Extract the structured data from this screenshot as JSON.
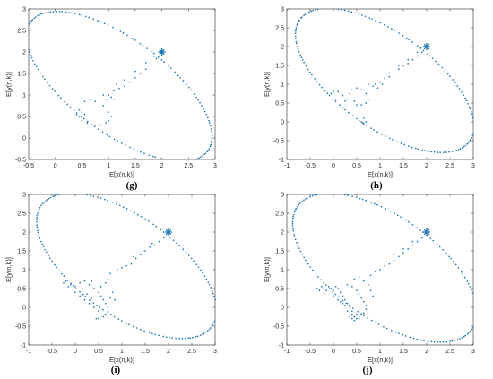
{
  "figure": {
    "background": "#ffffff",
    "marker_color": "#1f77b4"
  },
  "chart_data": [
    {
      "id": "g",
      "type": "scatter",
      "panel_label": "(g)",
      "title": "",
      "xlabel": "E[x(n,k)]",
      "ylabel": "E[y(n,k)]",
      "xlim": [
        -0.5,
        3.0
      ],
      "ylim": [
        -0.5,
        3.0
      ],
      "xticks": [
        -0.5,
        0,
        0.5,
        1,
        1.5,
        2,
        2.5,
        3
      ],
      "xtick_labels": [
        "-0.5",
        "0",
        "0.5",
        "1",
        "1.5",
        "2",
        "2.5",
        "3"
      ],
      "yticks": [
        -0.5,
        0,
        0.5,
        1,
        1.5,
        2,
        2.5,
        3
      ],
      "ytick_labels": [
        "-0.5",
        "0",
        "0.5",
        "1",
        "1.5",
        "2",
        "2.5",
        "3"
      ],
      "grid": false,
      "fixed_point": [
        2,
        2
      ],
      "orbit": {
        "center": [
          1.2,
          1.2
        ],
        "a": 2.25,
        "b": 1.0,
        "angle_deg": -45
      },
      "series": [
        {
          "values": [
            [
              0.45,
              0.65
            ],
            [
              0.4,
              0.55
            ],
            [
              0.55,
              0.85
            ],
            [
              0.65,
              0.9
            ],
            [
              0.75,
              0.85
            ],
            [
              0.9,
              0.75
            ],
            [
              1.0,
              0.6
            ],
            [
              1.05,
              0.5
            ],
            [
              1.0,
              0.4
            ],
            [
              0.95,
              0.35
            ],
            [
              0.85,
              0.3
            ],
            [
              0.75,
              0.3
            ],
            [
              0.6,
              0.35
            ],
            [
              0.5,
              0.4
            ],
            [
              0.45,
              0.5
            ],
            [
              0.95,
              0.9
            ],
            [
              0.9,
              1.0
            ],
            [
              1.0,
              1.0
            ],
            [
              1.1,
              1.1
            ],
            [
              1.2,
              1.15
            ],
            [
              1.3,
              1.2
            ],
            [
              1.4,
              1.3
            ],
            [
              1.5,
              1.4
            ],
            [
              1.6,
              1.5
            ],
            [
              1.7,
              1.6
            ],
            [
              1.8,
              1.7
            ],
            [
              1.9,
              1.85
            ],
            [
              1.15,
              1.25
            ],
            [
              1.3,
              1.35
            ],
            [
              1.5,
              1.55
            ],
            [
              1.7,
              1.75
            ],
            [
              1.85,
              1.9
            ],
            [
              1.05,
              0.95
            ],
            [
              1.1,
              0.9
            ],
            [
              0.55,
              0.55
            ],
            [
              0.5,
              0.6
            ]
          ]
        }
      ]
    },
    {
      "id": "h",
      "type": "scatter",
      "panel_label": "(h)",
      "title": "",
      "xlabel": "E[x(n,k)]",
      "ylabel": "E[y(n,k)]",
      "xlim": [
        -1,
        3
      ],
      "ylim": [
        -1,
        3
      ],
      "xticks": [
        -1,
        -0.5,
        0,
        0.5,
        1,
        1.5,
        2,
        2.5,
        3
      ],
      "xtick_labels": [
        "-1",
        "-0.5",
        "0",
        "0.5",
        "1",
        "1.5",
        "2",
        "2.5",
        "3"
      ],
      "yticks": [
        -1,
        -0.5,
        0,
        0.5,
        1,
        1.5,
        2,
        2.5,
        3
      ],
      "ytick_labels": [
        "-1",
        "-0.5",
        "0",
        "0.5",
        "1",
        "1.5",
        "2",
        "2.5",
        "3"
      ],
      "grid": false,
      "fixed_point": [
        2,
        2
      ],
      "orbit": {
        "center": [
          1.1,
          1.1
        ],
        "a": 2.45,
        "b": 1.15,
        "angle_deg": -45
      },
      "series": [
        {
          "values": [
            [
              -0.05,
              0.75
            ],
            [
              0.0,
              0.8
            ],
            [
              0.1,
              0.8
            ],
            [
              0.2,
              0.7
            ],
            [
              0.3,
              0.6
            ],
            [
              0.25,
              0.55
            ],
            [
              0.05,
              0.6
            ],
            [
              0.35,
              0.75
            ],
            [
              0.4,
              0.85
            ],
            [
              0.5,
              0.9
            ],
            [
              0.6,
              0.85
            ],
            [
              0.7,
              0.75
            ],
            [
              0.75,
              0.6
            ],
            [
              0.7,
              0.5
            ],
            [
              0.6,
              0.45
            ],
            [
              0.5,
              0.45
            ],
            [
              0.45,
              0.55
            ],
            [
              0.65,
              0.1
            ],
            [
              0.7,
              0.0
            ],
            [
              0.65,
              -0.05
            ],
            [
              0.6,
              0.0
            ],
            [
              0.75,
              1.0
            ],
            [
              0.9,
              1.0
            ],
            [
              1.0,
              1.05
            ],
            [
              1.1,
              1.15
            ],
            [
              1.2,
              1.2
            ],
            [
              1.3,
              1.3
            ],
            [
              1.4,
              1.4
            ],
            [
              1.5,
              1.5
            ],
            [
              1.6,
              1.55
            ],
            [
              1.7,
              1.65
            ],
            [
              1.8,
              1.75
            ],
            [
              1.9,
              1.85
            ],
            [
              1.2,
              1.3
            ],
            [
              1.4,
              1.5
            ],
            [
              1.6,
              1.65
            ],
            [
              1.8,
              1.85
            ],
            [
              0.95,
              0.9
            ],
            [
              1.05,
              1.0
            ],
            [
              0.85,
              0.95
            ]
          ]
        }
      ]
    },
    {
      "id": "i",
      "type": "scatter",
      "panel_label": "(i)",
      "title": "",
      "xlabel": "E[x(n,k)]",
      "ylabel": "E[y(n,k)]",
      "xlim": [
        -1,
        3
      ],
      "ylim": [
        -1,
        3
      ],
      "xticks": [
        -1,
        -0.5,
        0,
        0.5,
        1,
        1.5,
        2,
        2.5,
        3
      ],
      "xtick_labels": [
        "-1",
        "-0.5",
        "0",
        "0.5",
        "1",
        "1.5",
        "2",
        "2.5",
        "3"
      ],
      "yticks": [
        -1,
        -0.5,
        0,
        0.5,
        1,
        1.5,
        2,
        2.5,
        3
      ],
      "ytick_labels": [
        "-1",
        "-0.5",
        "0",
        "0.5",
        "1",
        "1.5",
        "2",
        "2.5",
        "3"
      ],
      "grid": false,
      "fixed_point": [
        2,
        2
      ],
      "orbit": {
        "center": [
          1.1,
          1.1
        ],
        "a": 2.45,
        "b": 1.2,
        "angle_deg": -45
      },
      "series": [
        {
          "values": [
            [
              -0.25,
              0.65
            ],
            [
              -0.2,
              0.7
            ],
            [
              -0.1,
              0.6
            ],
            [
              0.0,
              0.55
            ],
            [
              0.1,
              0.65
            ],
            [
              0.2,
              0.7
            ],
            [
              0.3,
              0.6
            ],
            [
              0.4,
              0.5
            ],
            [
              0.5,
              0.4
            ],
            [
              0.55,
              0.3
            ],
            [
              0.6,
              0.2
            ],
            [
              0.65,
              0.1
            ],
            [
              0.7,
              0.0
            ],
            [
              0.7,
              -0.1
            ],
            [
              0.65,
              -0.2
            ],
            [
              0.6,
              -0.25
            ],
            [
              0.5,
              -0.3
            ],
            [
              0.45,
              -0.3
            ],
            [
              -0.15,
              0.55
            ],
            [
              0.0,
              0.4
            ],
            [
              0.1,
              0.3
            ],
            [
              0.2,
              0.2
            ],
            [
              0.3,
              0.1
            ],
            [
              0.4,
              0.0
            ],
            [
              0.5,
              -0.1
            ],
            [
              0.55,
              0.55
            ],
            [
              0.65,
              0.65
            ],
            [
              0.7,
              0.75
            ],
            [
              0.75,
              0.9
            ],
            [
              0.8,
              0.4
            ],
            [
              0.75,
              0.25
            ],
            [
              0.85,
              0.2
            ],
            [
              0.9,
              1.0
            ],
            [
              1.0,
              1.05
            ],
            [
              1.1,
              1.1
            ],
            [
              1.2,
              1.15
            ],
            [
              1.3,
              1.3
            ],
            [
              1.4,
              1.4
            ],
            [
              1.5,
              1.5
            ],
            [
              1.6,
              1.6
            ],
            [
              1.7,
              1.65
            ],
            [
              1.8,
              1.75
            ],
            [
              1.9,
              1.85
            ],
            [
              1.25,
              1.35
            ],
            [
              1.45,
              1.5
            ],
            [
              1.65,
              1.7
            ],
            [
              0.35,
              0.7
            ],
            [
              0.15,
              0.5
            ],
            [
              0.25,
              0.35
            ],
            [
              0.35,
              0.25
            ]
          ]
        }
      ]
    },
    {
      "id": "j",
      "type": "scatter",
      "panel_label": "(j)",
      "title": "",
      "xlabel": "E[x(n,k)]",
      "ylabel": "E[y(n,k)]",
      "xlim": [
        -1,
        3
      ],
      "ylim": [
        -1,
        3
      ],
      "xticks": [
        -1,
        -0.5,
        0,
        0.5,
        1,
        1.5,
        2,
        2.5,
        3
      ],
      "xtick_labels": [
        "-1",
        "-0.5",
        "0",
        "0.5",
        "1",
        "1.5",
        "2",
        "2.5",
        "3"
      ],
      "yticks": [
        -1,
        -0.5,
        0,
        0.5,
        1,
        1.5,
        2,
        2.5,
        3
      ],
      "ytick_labels": [
        "-1",
        "-0.5",
        "0",
        "0.5",
        "1",
        "1.5",
        "2",
        "2.5",
        "3"
      ],
      "grid": false,
      "fixed_point": [
        2,
        2
      ],
      "orbit": {
        "center": [
          1.1,
          1.05
        ],
        "a": 2.5,
        "b": 1.25,
        "angle_deg": -45
      },
      "series": [
        {
          "values": [
            [
              -0.35,
              0.5
            ],
            [
              -0.3,
              0.45
            ],
            [
              -0.25,
              0.55
            ],
            [
              -0.2,
              0.5
            ],
            [
              -0.15,
              0.45
            ],
            [
              -0.1,
              0.55
            ],
            [
              -0.05,
              0.5
            ],
            [
              0.0,
              0.45
            ],
            [
              0.05,
              0.55
            ],
            [
              0.1,
              0.5
            ],
            [
              0.15,
              0.4
            ],
            [
              0.2,
              0.3
            ],
            [
              0.25,
              0.2
            ],
            [
              0.3,
              0.1
            ],
            [
              0.35,
              0.0
            ],
            [
              0.4,
              -0.1
            ],
            [
              0.4,
              -0.2
            ],
            [
              0.45,
              -0.25
            ],
            [
              0.5,
              -0.3
            ],
            [
              0.45,
              -0.35
            ],
            [
              0.4,
              -0.3
            ],
            [
              0.35,
              -0.25
            ],
            [
              0.55,
              -0.25
            ],
            [
              0.6,
              -0.2
            ],
            [
              0.5,
              -0.2
            ],
            [
              0.55,
              -0.3
            ],
            [
              0.3,
              0.6
            ],
            [
              0.4,
              0.55
            ],
            [
              0.5,
              0.45
            ],
            [
              0.55,
              0.35
            ],
            [
              0.6,
              0.25
            ],
            [
              0.65,
              0.15
            ],
            [
              0.7,
              0.05
            ],
            [
              0.7,
              -0.05
            ],
            [
              0.65,
              -0.15
            ],
            [
              0.45,
              0.75
            ],
            [
              0.55,
              0.8
            ],
            [
              0.65,
              0.7
            ],
            [
              0.75,
              0.6
            ],
            [
              0.8,
              0.45
            ],
            [
              0.85,
              0.3
            ],
            [
              0.8,
              0.85
            ],
            [
              0.9,
              0.95
            ],
            [
              1.0,
              1.0
            ],
            [
              1.1,
              1.1
            ],
            [
              1.2,
              1.15
            ],
            [
              1.3,
              1.25
            ],
            [
              1.4,
              1.35
            ],
            [
              1.5,
              1.45
            ],
            [
              1.6,
              1.55
            ],
            [
              1.7,
              1.65
            ],
            [
              1.8,
              1.75
            ],
            [
              1.9,
              1.85
            ],
            [
              1.3,
              1.4
            ],
            [
              1.5,
              1.55
            ],
            [
              1.7,
              1.75
            ],
            [
              0.0,
              0.3
            ],
            [
              0.1,
              0.2
            ],
            [
              0.2,
              0.1
            ],
            [
              -0.2,
              0.35
            ],
            [
              0.3,
              -0.1
            ],
            [
              0.25,
              0.05
            ],
            [
              0.15,
              0.15
            ]
          ]
        }
      ]
    }
  ]
}
